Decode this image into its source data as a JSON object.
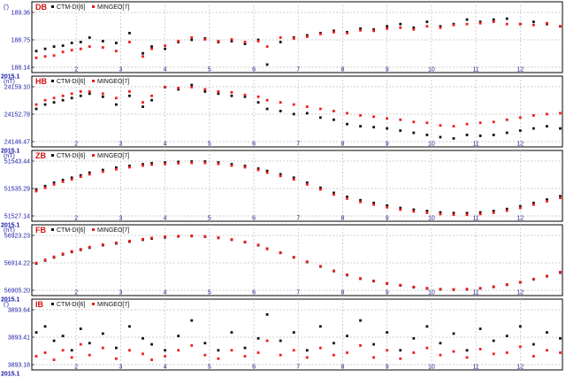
{
  "colors": {
    "series_a": "#111111",
    "series_b": "#ee1c1c",
    "axis_text": "#1a1aa6",
    "title": "#d01010",
    "grid": "#bdbdbd"
  },
  "legend": {
    "series_a": "CTM-DI[6]",
    "series_b": "MINGEO[7]"
  },
  "x_axis": {
    "start_label": "2015.1",
    "month_ticks": [
      "2",
      "3",
      "4",
      "5",
      "6",
      "7",
      "8",
      "9",
      "10",
      "11",
      "12"
    ]
  },
  "chart_data": [
    {
      "type": "scatter",
      "title": "DB",
      "unit": "(')",
      "y_ticks": [
        "189.36",
        "188.75",
        "188.14"
      ],
      "ylim": [
        188.14,
        189.36
      ],
      "grid": true,
      "legend_placement": "top-left",
      "series": [
        {
          "name": "CTM-DI[6]",
          "x_month": [
            1.1,
            1.3,
            1.5,
            1.7,
            1.9,
            2.1,
            2.3,
            2.6,
            2.9,
            3.2,
            3.5,
            3.7,
            4.0,
            4.3,
            4.6,
            4.9,
            5.2,
            5.5,
            5.8,
            6.1,
            6.3,
            6.6,
            6.9,
            7.2,
            7.5,
            7.8,
            8.1,
            8.4,
            8.7,
            9.0,
            9.3,
            9.6,
            9.9,
            10.2,
            10.5,
            10.8,
            11.1,
            11.4,
            11.7,
            12.0,
            12.3,
            12.6,
            12.9
          ],
          "values": [
            188.5,
            188.55,
            188.6,
            188.62,
            188.68,
            188.7,
            188.8,
            188.72,
            188.68,
            188.9,
            188.45,
            188.6,
            188.55,
            188.7,
            188.75,
            188.78,
            188.7,
            188.72,
            188.66,
            188.75,
            188.2,
            188.7,
            188.8,
            188.85,
            188.9,
            188.95,
            188.92,
            189.0,
            188.98,
            189.05,
            189.1,
            189.02,
            189.15,
            189.05,
            189.1,
            189.2,
            189.15,
            189.2,
            189.22,
            189.1,
            189.15,
            189.1,
            189.05
          ]
        },
        {
          "name": "MINGEO[7]",
          "x_month": [
            1.1,
            1.3,
            1.5,
            1.7,
            1.9,
            2.1,
            2.3,
            2.6,
            2.9,
            3.2,
            3.5,
            3.7,
            4.0,
            4.3,
            4.6,
            4.9,
            5.2,
            5.5,
            5.8,
            6.1,
            6.3,
            6.6,
            6.9,
            7.2,
            7.5,
            7.8,
            8.1,
            8.4,
            8.7,
            9.0,
            9.3,
            9.6,
            9.9,
            10.2,
            10.5,
            10.8,
            11.1,
            11.4,
            11.7,
            12.0,
            12.3,
            12.6,
            12.9
          ],
          "values": [
            188.35,
            188.38,
            188.4,
            188.48,
            188.52,
            188.55,
            188.6,
            188.58,
            188.5,
            188.7,
            188.38,
            188.55,
            188.62,
            188.72,
            188.8,
            188.76,
            188.72,
            188.76,
            188.7,
            188.72,
            188.6,
            188.8,
            188.78,
            188.82,
            188.88,
            188.92,
            188.9,
            188.96,
            188.95,
            189.0,
            189.02,
            188.98,
            189.05,
            189.02,
            189.08,
            189.1,
            189.12,
            189.15,
            189.1,
            189.1,
            189.08,
            189.12,
            189.05
          ]
        }
      ]
    },
    {
      "type": "scatter",
      "title": "HB",
      "unit": "(nT)",
      "y_ticks": [
        "24159.10",
        "24152.78",
        "24146.47"
      ],
      "ylim": [
        24146.47,
        24159.1
      ],
      "grid": true,
      "legend_placement": "top-left",
      "series": [
        {
          "name": "CTM-DI[6]",
          "x_month": [
            1.1,
            1.3,
            1.5,
            1.7,
            1.9,
            2.1,
            2.3,
            2.6,
            2.9,
            3.2,
            3.5,
            3.7,
            4.0,
            4.3,
            4.6,
            4.9,
            5.2,
            5.5,
            5.8,
            6.1,
            6.3,
            6.6,
            6.9,
            7.2,
            7.5,
            7.8,
            8.1,
            8.4,
            8.7,
            9.0,
            9.3,
            9.6,
            9.9,
            10.2,
            10.5,
            10.8,
            11.1,
            11.4,
            11.7,
            12.0,
            12.3,
            12.6,
            12.9
          ],
          "values": [
            24154,
            24155,
            24155.5,
            24156,
            24156.5,
            24157,
            24157.5,
            24156.8,
            24155,
            24157,
            24154.5,
            24156,
            24159,
            24158.5,
            24159.5,
            24158,
            24157.5,
            24157,
            24156.8,
            24155.5,
            24154,
            24153.5,
            24152.8,
            24153,
            24152,
            24151.5,
            24150.5,
            24150,
            24149.8,
            24149.5,
            24149,
            24148.5,
            24148,
            24147.5,
            24147.2,
            24148,
            24147.8,
            24148,
            24148.5,
            24149,
            24149.5,
            24150,
            24149.5
          ]
        },
        {
          "name": "MINGEO[7]",
          "x_month": [
            1.1,
            1.3,
            1.5,
            1.7,
            1.9,
            2.1,
            2.3,
            2.6,
            2.9,
            3.2,
            3.5,
            3.7,
            4.0,
            4.3,
            4.6,
            4.9,
            5.2,
            5.5,
            5.8,
            6.1,
            6.3,
            6.6,
            6.9,
            7.2,
            7.5,
            7.8,
            8.1,
            8.4,
            8.7,
            9.0,
            9.3,
            9.6,
            9.9,
            10.2,
            10.5,
            10.8,
            11.1,
            11.4,
            11.7,
            12.0,
            12.3,
            12.6,
            12.9
          ],
          "values": [
            24155,
            24156,
            24156.5,
            24157,
            24157.5,
            24158,
            24158,
            24157.5,
            24156.5,
            24158,
            24155.5,
            24157,
            24159,
            24158.8,
            24159,
            24158.5,
            24158,
            24157.8,
            24157.2,
            24156.8,
            24156,
            24155.5,
            24155,
            24154.5,
            24154,
            24153.5,
            24153,
            24152.5,
            24152.2,
            24151.8,
            24151.5,
            24151,
            24150.8,
            24150.2,
            24150,
            24150.5,
            24150.8,
            24151,
            24151.5,
            24152,
            24152.5,
            24152.8,
            24153
          ]
        }
      ]
    },
    {
      "type": "scatter",
      "title": "ZB",
      "unit": "(nT)",
      "y_ticks": [
        "51543.44",
        "51535.29",
        "51527.14"
      ],
      "ylim": [
        51527.14,
        51543.44
      ],
      "grid": true,
      "legend_placement": "top-left",
      "series": [
        {
          "name": "CTM-DI[6]",
          "x_month": [
            1.1,
            1.3,
            1.5,
            1.7,
            1.9,
            2.1,
            2.3,
            2.6,
            2.9,
            3.2,
            3.5,
            3.7,
            4.0,
            4.3,
            4.6,
            4.9,
            5.2,
            5.5,
            5.8,
            6.1,
            6.3,
            6.6,
            6.9,
            7.2,
            7.5,
            7.8,
            8.1,
            8.4,
            8.7,
            9.0,
            9.3,
            9.6,
            9.9,
            10.2,
            10.5,
            10.8,
            11.1,
            11.4,
            11.7,
            12.0,
            12.3,
            12.6,
            12.9
          ],
          "values": [
            51535,
            51536,
            51537,
            51537.8,
            51538.5,
            51539.2,
            51540,
            51540.8,
            51541.5,
            51542,
            51542.5,
            51542.8,
            51543,
            51543.2,
            51543.3,
            51543.3,
            51543,
            51542.5,
            51542,
            51541.2,
            51540.5,
            51539.5,
            51538.5,
            51537,
            51535.5,
            51534,
            51532.8,
            51531.8,
            51531,
            51530.2,
            51529.5,
            51529,
            51528.6,
            51528.2,
            51528,
            51528,
            51528.2,
            51528.6,
            51529.2,
            51530,
            51531,
            51532,
            51533
          ]
        },
        {
          "name": "MINGEO[7]",
          "x_month": [
            1.1,
            1.3,
            1.5,
            1.7,
            1.9,
            2.1,
            2.3,
            2.6,
            2.9,
            3.2,
            3.5,
            3.7,
            4.0,
            4.3,
            4.6,
            4.9,
            5.2,
            5.5,
            5.8,
            6.1,
            6.3,
            6.6,
            6.9,
            7.2,
            7.5,
            7.8,
            8.1,
            8.4,
            8.7,
            9.0,
            9.3,
            9.6,
            9.9,
            10.2,
            10.5,
            10.8,
            11.1,
            11.4,
            11.7,
            12.0,
            12.3,
            12.6,
            12.9
          ],
          "values": [
            51534.5,
            51535.5,
            51536.5,
            51537.3,
            51538,
            51538.8,
            51539.5,
            51540.3,
            51541,
            51541.6,
            51542.1,
            51542.4,
            51542.6,
            51542.8,
            51542.9,
            51542.9,
            51542.6,
            51542.1,
            51541.6,
            51540.8,
            51540,
            51539,
            51538,
            51536.5,
            51535,
            51533.5,
            51532.3,
            51531.3,
            51530.5,
            51529.7,
            51529,
            51528.5,
            51528.1,
            51527.7,
            51527.5,
            51527.5,
            51527.7,
            51528.1,
            51528.7,
            51529.5,
            51530.5,
            51531.5,
            51532.5
          ]
        }
      ]
    },
    {
      "type": "scatter",
      "title": "FB",
      "unit": "(nT)",
      "y_ticks": [
        "56923.23",
        "56914.22",
        "56905.20"
      ],
      "ylim": [
        56905.2,
        56923.23
      ],
      "grid": true,
      "legend_placement": "top-left",
      "series": [
        {
          "name": "CTM-DI[6]",
          "x_month": [
            1.1,
            1.3,
            1.5,
            1.7,
            1.9,
            2.1,
            2.3,
            2.6,
            2.9,
            3.2,
            3.5,
            3.7,
            4.0,
            4.3,
            4.6,
            4.9,
            5.2,
            5.5,
            5.8,
            6.1,
            6.3,
            6.6,
            6.9,
            7.2,
            7.5,
            7.8,
            8.1,
            8.4,
            8.7,
            9.0,
            9.3,
            9.6,
            9.9,
            10.2,
            10.5,
            10.8,
            11.1,
            11.4,
            11.7,
            12.0,
            12.3,
            12.6,
            12.9
          ],
          "values": [
            56914,
            56915,
            56916,
            56917,
            56917.8,
            56918.5,
            56919.2,
            56920,
            56920.6,
            56921.2,
            56921.8,
            56922.2,
            56922.6,
            56922.9,
            56923,
            56922.8,
            56922.4,
            56921.8,
            56921,
            56920,
            56918.8,
            56917.5,
            56916,
            56914.5,
            56913,
            56911.5,
            56910.2,
            56909,
            56908.2,
            56907.4,
            56906.8,
            56906.2,
            56905.8,
            56905.5,
            56905.4,
            56905.5,
            56905.8,
            56906.3,
            56907,
            56907.8,
            56908.8,
            56909.8,
            56911
          ]
        },
        {
          "name": "MINGEO[7]",
          "x_month": [
            1.1,
            1.3,
            1.5,
            1.7,
            1.9,
            2.1,
            2.3,
            2.6,
            2.9,
            3.2,
            3.5,
            3.7,
            4.0,
            4.3,
            4.6,
            4.9,
            5.2,
            5.5,
            5.8,
            6.1,
            6.3,
            6.6,
            6.9,
            7.2,
            7.5,
            7.8,
            8.1,
            8.4,
            8.7,
            9.0,
            9.3,
            9.6,
            9.9,
            10.2,
            10.5,
            10.8,
            11.1,
            11.4,
            11.7,
            12.0,
            12.3,
            12.6,
            12.9
          ],
          "values": [
            56914.2,
            56915.2,
            56916.2,
            56917.2,
            56918,
            56918.7,
            56919.4,
            56920.2,
            56920.8,
            56921.4,
            56922,
            56922.4,
            56922.8,
            56923,
            56923.1,
            56922.9,
            56922.5,
            56921.9,
            56921.1,
            56920.1,
            56918.9,
            56917.6,
            56916.1,
            56914.6,
            56913.1,
            56911.6,
            56910.3,
            56909.1,
            56908.3,
            56907.5,
            56906.9,
            56906.3,
            56905.9,
            56905.6,
            56905.5,
            56905.6,
            56905.9,
            56906.4,
            56907.1,
            56907.9,
            56908.9,
            56909.9,
            56911.2
          ]
        }
      ]
    },
    {
      "type": "scatter",
      "title": "IB",
      "unit": "(')",
      "y_ticks": [
        "3893.64",
        "3893.41",
        "3893.18"
      ],
      "ylim": [
        3893.18,
        3893.64
      ],
      "grid": true,
      "legend_placement": "top-left",
      "series": [
        {
          "name": "CTM-DI[6]",
          "x_month": [
            1.1,
            1.3,
            1.5,
            1.7,
            1.9,
            2.1,
            2.3,
            2.6,
            2.9,
            3.2,
            3.5,
            3.7,
            4.0,
            4.3,
            4.6,
            4.9,
            5.2,
            5.5,
            5.8,
            6.1,
            6.3,
            6.6,
            6.9,
            7.2,
            7.5,
            7.8,
            8.1,
            8.4,
            8.7,
            9.0,
            9.3,
            9.6,
            9.9,
            10.2,
            10.5,
            10.8,
            11.1,
            11.4,
            11.7,
            12.0,
            12.3,
            12.6,
            12.9
          ],
          "values": [
            3893.45,
            3893.5,
            3893.38,
            3893.42,
            3893.3,
            3893.48,
            3893.36,
            3893.44,
            3893.32,
            3893.5,
            3893.4,
            3893.35,
            3893.3,
            3893.42,
            3893.55,
            3893.36,
            3893.3,
            3893.45,
            3893.32,
            3893.4,
            3893.6,
            3893.38,
            3893.45,
            3893.3,
            3893.5,
            3893.36,
            3893.42,
            3893.55,
            3893.35,
            3893.45,
            3893.3,
            3893.4,
            3893.5,
            3893.36,
            3893.44,
            3893.3,
            3893.48,
            3893.38,
            3893.42,
            3893.5,
            3893.35,
            3893.45,
            3893.4
          ]
        },
        {
          "name": "MINGEO[7]",
          "x_month": [
            1.1,
            1.3,
            1.5,
            1.7,
            1.9,
            2.1,
            2.3,
            2.6,
            2.9,
            3.2,
            3.5,
            3.7,
            4.0,
            4.3,
            4.6,
            4.9,
            5.2,
            5.5,
            5.8,
            6.1,
            6.3,
            6.6,
            6.9,
            7.2,
            7.5,
            7.8,
            8.1,
            8.4,
            8.7,
            9.0,
            9.3,
            9.6,
            9.9,
            10.2,
            10.5,
            10.8,
            11.1,
            11.4,
            11.7,
            12.0,
            12.3,
            12.6,
            12.9
          ],
          "values": [
            3893.25,
            3893.28,
            3893.22,
            3893.3,
            3893.24,
            3893.35,
            3893.26,
            3893.32,
            3893.23,
            3893.3,
            3893.27,
            3893.22,
            3893.25,
            3893.3,
            3893.34,
            3893.26,
            3893.23,
            3893.3,
            3893.25,
            3893.28,
            3893.38,
            3893.26,
            3893.3,
            3893.24,
            3893.32,
            3893.26,
            3893.28,
            3893.34,
            3893.24,
            3893.3,
            3893.23,
            3893.28,
            3893.32,
            3893.26,
            3893.29,
            3893.24,
            3893.31,
            3893.27,
            3893.28,
            3893.33,
            3893.25,
            3893.3,
            3893.28
          ]
        }
      ]
    }
  ]
}
